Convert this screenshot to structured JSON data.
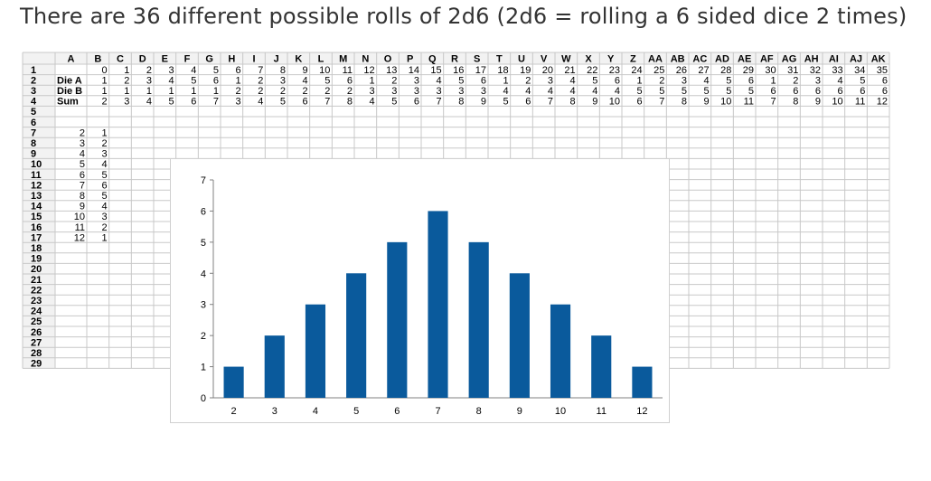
{
  "title": "There are 36 different possible rolls of 2d6 (2d6 = rolling a 6 sided dice 2 times)",
  "columns": [
    "A",
    "B",
    "C",
    "D",
    "E",
    "F",
    "G",
    "H",
    "I",
    "J",
    "K",
    "L",
    "M",
    "N",
    "O",
    "P",
    "Q",
    "R",
    "S",
    "T",
    "U",
    "V",
    "W",
    "X",
    "Y",
    "Z",
    "AA",
    "AB",
    "AC",
    "AD",
    "AE",
    "AF",
    "AG",
    "AH",
    "AI",
    "AJ",
    "AK"
  ],
  "row_numbers": [
    1,
    2,
    3,
    4,
    5,
    6,
    7,
    8,
    9,
    10,
    11,
    12,
    13,
    14,
    15,
    16,
    17,
    18,
    19,
    20,
    21,
    22,
    23,
    24,
    25,
    26,
    27,
    28,
    29
  ],
  "row_labels": {
    "2": "Die A",
    "3": "Die B",
    "4": "Sum"
  },
  "roll_index": [
    0,
    1,
    2,
    3,
    4,
    5,
    6,
    7,
    8,
    9,
    10,
    11,
    12,
    13,
    14,
    15,
    16,
    17,
    18,
    19,
    20,
    21,
    22,
    23,
    24,
    25,
    26,
    27,
    28,
    29,
    30,
    31,
    32,
    33,
    34,
    35
  ],
  "die_a": [
    1,
    2,
    3,
    4,
    5,
    6,
    1,
    2,
    3,
    4,
    5,
    6,
    1,
    2,
    3,
    4,
    5,
    6,
    1,
    2,
    3,
    4,
    5,
    6,
    1,
    2,
    3,
    4,
    5,
    6,
    1,
    2,
    3,
    4,
    5,
    6
  ],
  "die_b": [
    1,
    1,
    1,
    1,
    1,
    1,
    2,
    2,
    2,
    2,
    2,
    2,
    3,
    3,
    3,
    3,
    3,
    3,
    4,
    4,
    4,
    4,
    4,
    4,
    5,
    5,
    5,
    5,
    5,
    5,
    6,
    6,
    6,
    6,
    6,
    6
  ],
  "sums": [
    2,
    3,
    4,
    5,
    6,
    7,
    3,
    4,
    5,
    6,
    7,
    8,
    4,
    5,
    6,
    7,
    8,
    9,
    5,
    6,
    7,
    8,
    9,
    10,
    6,
    7,
    8,
    9,
    10,
    11,
    7,
    8,
    9,
    10,
    11,
    12
  ],
  "freq_table": [
    [
      "2",
      "1"
    ],
    [
      "3",
      "2"
    ],
    [
      "4",
      "3"
    ],
    [
      "5",
      "4"
    ],
    [
      "6",
      "5"
    ],
    [
      "7",
      "6"
    ],
    [
      "8",
      "5"
    ],
    [
      "9",
      "4"
    ],
    [
      "10",
      "3"
    ],
    [
      "11",
      "2"
    ],
    [
      "12",
      "1"
    ]
  ],
  "chart_data": {
    "type": "bar",
    "categories": [
      "2",
      "3",
      "4",
      "5",
      "6",
      "7",
      "8",
      "9",
      "10",
      "11",
      "12"
    ],
    "values": [
      1,
      2,
      3,
      4,
      5,
      6,
      5,
      4,
      3,
      2,
      1
    ],
    "title": "",
    "xlabel": "",
    "ylabel": "",
    "ylim": [
      0,
      7
    ],
    "yticks": [
      "0",
      "1",
      "2",
      "3",
      "4",
      "5",
      "6",
      "7"
    ],
    "grid": false,
    "bar_color": "#0a5a9c"
  },
  "colors": {
    "header_bg": "#f2f2f2",
    "grid_line": "#c8c8c8",
    "bar": "#0a5a9c"
  }
}
